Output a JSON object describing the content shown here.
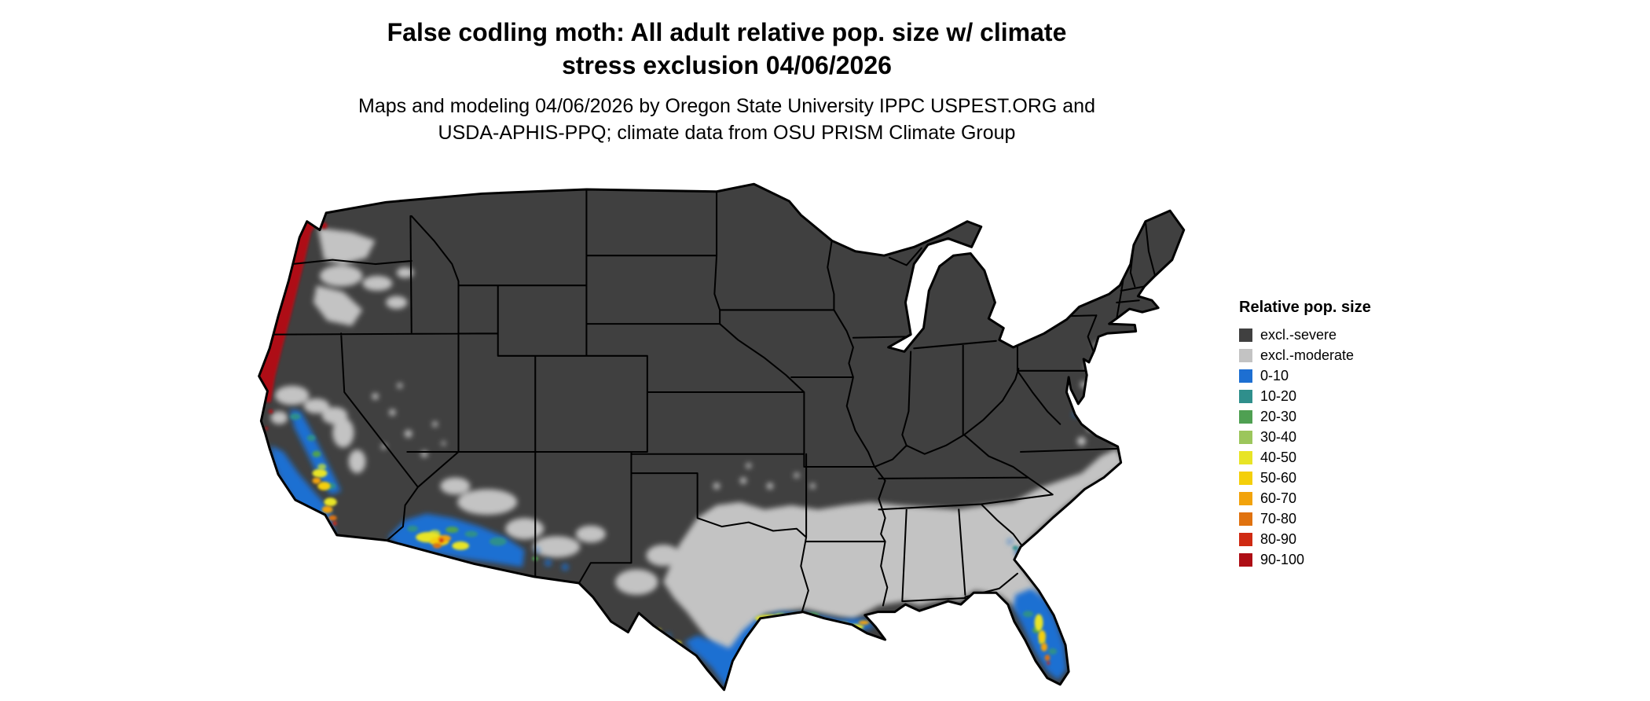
{
  "title": {
    "line1": "False codling moth: All adult relative pop. size w/ climate",
    "line2": "stress exclusion 04/06/2026"
  },
  "subtitle": {
    "line1": "Maps and modeling 04/06/2026 by Oregon State University IPPC USPEST.ORG and",
    "line2": "USDA-APHIS-PPQ; climate data from OSU PRISM Climate Group"
  },
  "legend": {
    "title": "Relative pop. size",
    "items": [
      {
        "label": "excl.-severe",
        "color": "#404040"
      },
      {
        "label": "excl.-moderate",
        "color": "#c3c3c3"
      },
      {
        "label": "0-10",
        "color": "#1d6fd2"
      },
      {
        "label": "10-20",
        "color": "#2f8f8c"
      },
      {
        "label": "20-30",
        "color": "#4fa052"
      },
      {
        "label": "30-40",
        "color": "#9cc65c"
      },
      {
        "label": "40-50",
        "color": "#e8e426"
      },
      {
        "label": "50-60",
        "color": "#f4cf0a"
      },
      {
        "label": "60-70",
        "color": "#f2a30b"
      },
      {
        "label": "70-80",
        "color": "#e0720f"
      },
      {
        "label": "80-90",
        "color": "#cf2a12"
      },
      {
        "label": "90-100",
        "color": "#ae0e15"
      }
    ]
  }
}
